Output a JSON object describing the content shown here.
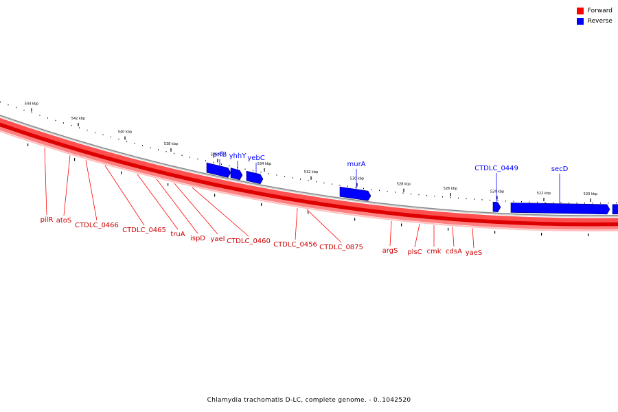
{
  "legend": {
    "forward_label": "Forward",
    "reverse_label": "Reverse",
    "forward_color": "#ff0000",
    "reverse_color": "#0000ff"
  },
  "caption": "Chlamydia trachomatis D-LC, complete genome. - 0..1042520",
  "scale": {
    "unit": "kbp",
    "ticks": [
      544,
      542,
      540,
      538,
      536,
      534,
      532,
      530,
      528,
      526,
      524,
      522,
      520
    ]
  },
  "forward_genes": [
    "pilR",
    "atoS",
    "CTDLC_0466",
    "CTDLC_0465",
    "truA",
    "ispD",
    "yaeI",
    "CTDLC_0460",
    "CTDLC_0456",
    "CTDLC_0875",
    "argS",
    "plsC",
    "cmk",
    "cdsA",
    "yaeS"
  ],
  "reverse_genes": [
    "prfB",
    "yhhY",
    "yebC",
    "murA",
    "CTDLC_0449",
    "secD"
  ]
}
